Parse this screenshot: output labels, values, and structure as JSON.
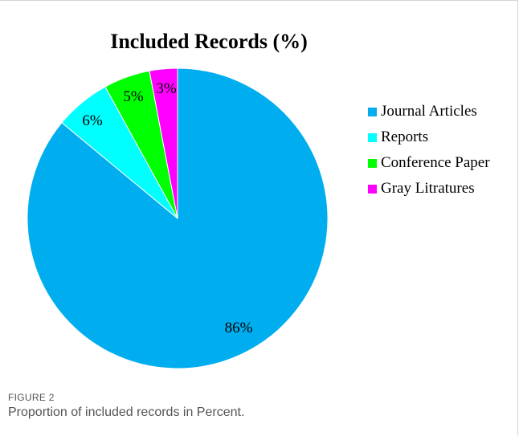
{
  "chart_data": {
    "type": "pie",
    "title": "Included Records (%)",
    "categories": [
      "Journal Articles",
      "Reports",
      "Conference Paper",
      "Gray Litratures"
    ],
    "values": [
      86,
      6,
      5,
      3
    ],
    "data_labels": [
      "86%",
      "6%",
      "5%",
      "3%"
    ],
    "colors": [
      "#00aeef",
      "#00ffff",
      "#00ff00",
      "#ff00ff"
    ],
    "legend": "right"
  },
  "figure": {
    "label": "FIGURE 2",
    "caption": "Proportion of included records in Percent."
  }
}
